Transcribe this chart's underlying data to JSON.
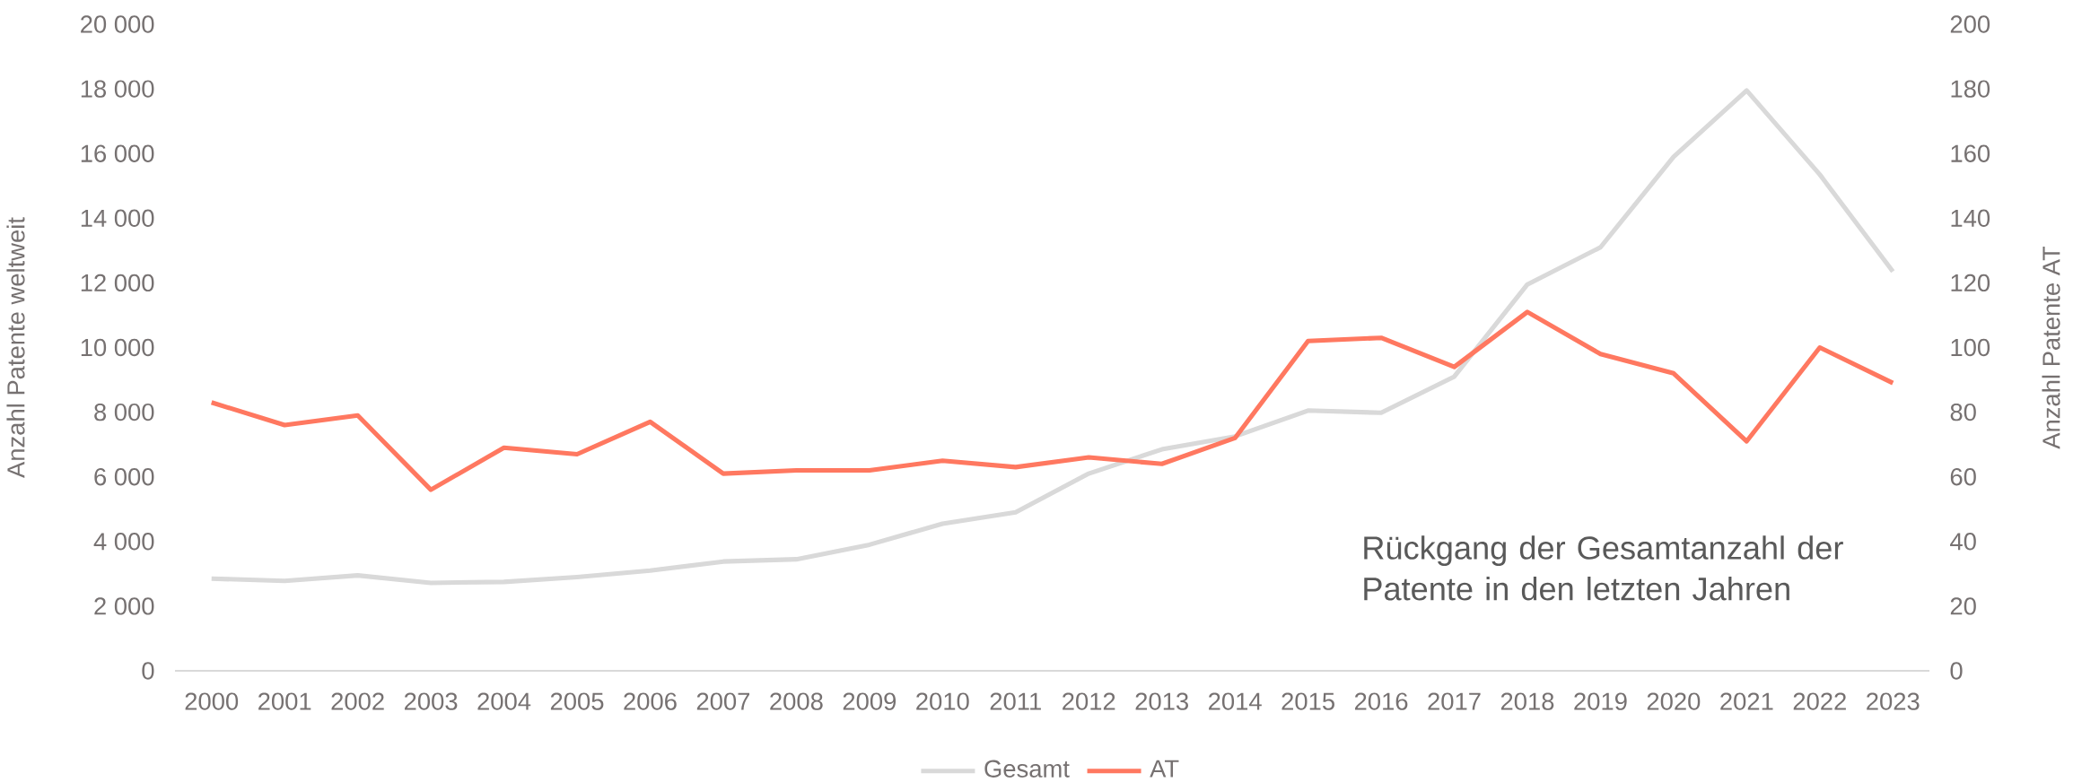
{
  "chart_data": {
    "type": "line",
    "categories": [
      "2000",
      "2001",
      "2002",
      "2003",
      "2004",
      "2005",
      "2006",
      "2007",
      "2008",
      "2009",
      "2010",
      "2011",
      "2012",
      "2013",
      "2014",
      "2015",
      "2016",
      "2017",
      "2018",
      "2019",
      "2020",
      "2021",
      "2022",
      "2023"
    ],
    "series": [
      {
        "name": "Gesamt",
        "color": "#d9d9d9",
        "values": [
          2850,
          2780,
          2950,
          2720,
          2750,
          2900,
          3100,
          3380,
          3450,
          3900,
          4550,
          4900,
          6100,
          6850,
          7250,
          8050,
          7980,
          9100,
          11950,
          13100,
          15900,
          17950,
          15350,
          12350
        ]
      },
      {
        "name": "AT",
        "color": "#ff7860",
        "axis": "y2",
        "values": [
          83,
          76,
          79,
          56,
          69,
          67,
          77,
          61,
          62,
          62,
          65,
          63,
          66,
          64,
          72,
          102,
          103,
          94,
          111,
          98,
          92,
          71,
          100,
          89
        ]
      }
    ],
    "ylabel": "Anzahl Patente weltweit",
    "y2label": "Anzahl Patente AT",
    "ylim": [
      0,
      20000
    ],
    "yticks": [
      0,
      {
        "value": 2000,
        "label": "2 000"
      },
      {
        "value": 4000,
        "label": "4 000"
      },
      {
        "value": 6000,
        "label": "6 000"
      },
      {
        "value": 8000,
        "label": "8 000"
      },
      {
        "value": 10000,
        "label": "10 000"
      },
      {
        "value": 12000,
        "label": "12 000"
      },
      {
        "value": 14000,
        "label": "14 000"
      },
      {
        "value": 16000,
        "label": "16 000"
      },
      {
        "value": 18000,
        "label": "18 000"
      },
      {
        "value": 20000,
        "label": "20 000"
      }
    ],
    "y2lim": [
      0,
      200
    ],
    "y2ticks": [
      0,
      20,
      40,
      60,
      80,
      100,
      120,
      140,
      160,
      180,
      200
    ],
    "annotations": [
      "Rückgang der Gesamtanzahl der Patente in den letzten Jahren"
    ],
    "legend": "bottom",
    "grid": false,
    "marker": "none",
    "line_style": "solid"
  }
}
